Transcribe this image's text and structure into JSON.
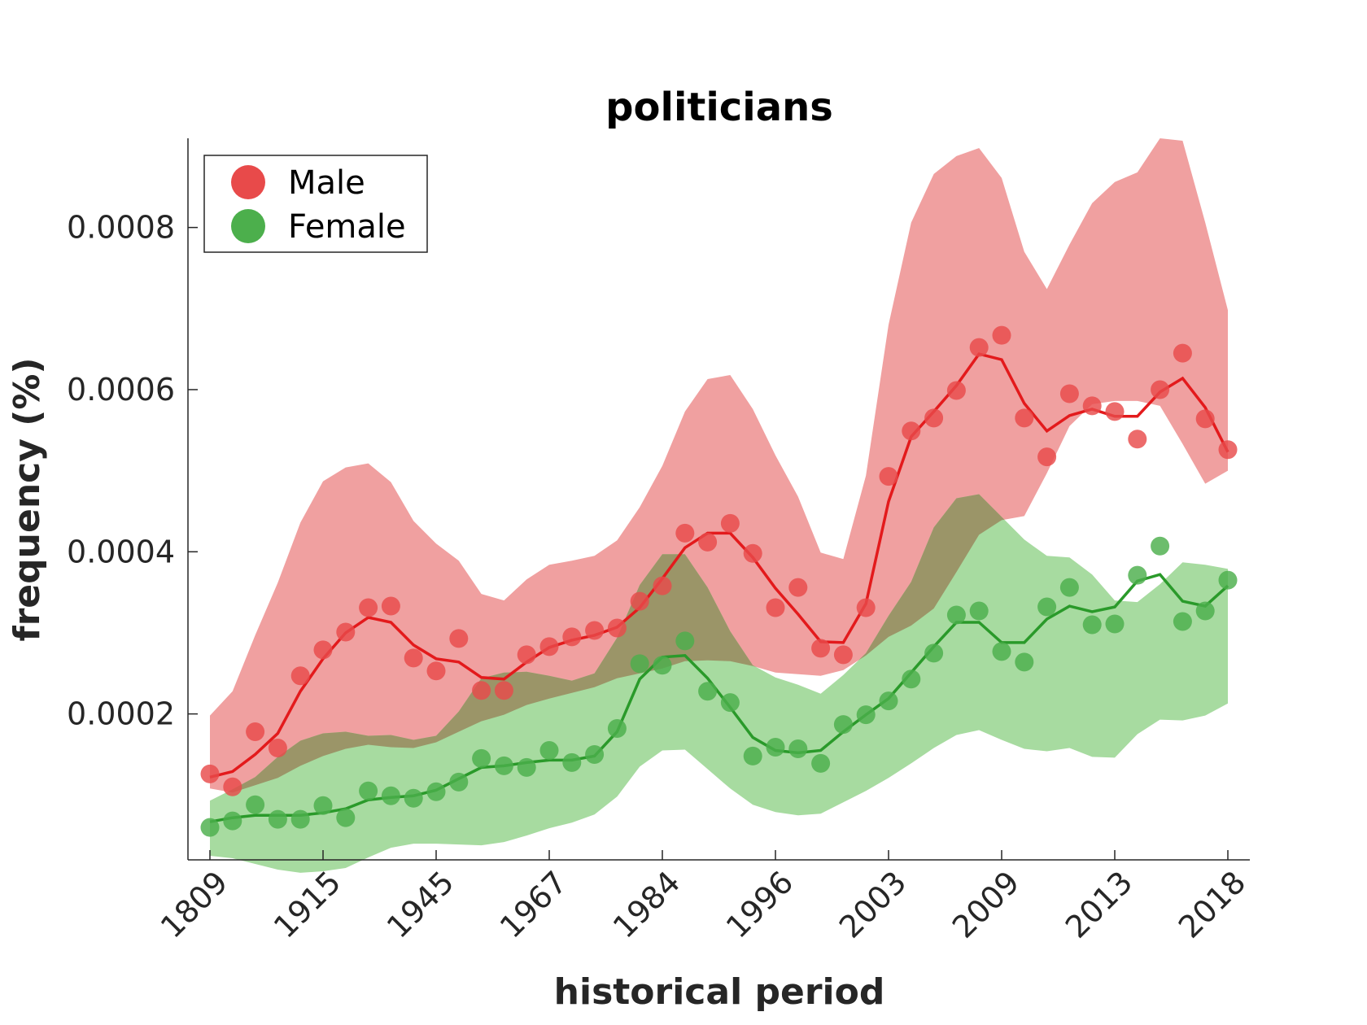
{
  "chart_data": {
    "type": "line",
    "title": "politicians",
    "xlabel": "historical period",
    "ylabel": "frequency (%)",
    "x_tick_labels": [
      "1809",
      "1915",
      "1945",
      "1967",
      "1984",
      "1996",
      "2003",
      "2009",
      "2013",
      "2018"
    ],
    "y_ticks": [
      0.0002,
      0.0004,
      0.0006,
      0.0008
    ],
    "y_tick_labels": [
      "0.0002",
      "0.0004",
      "0.0006",
      "0.0008"
    ],
    "ylim": [
      2e-05,
      0.00091
    ],
    "n_points": 46,
    "legend": {
      "position": "top-left",
      "entries": [
        "Male",
        "Female"
      ]
    },
    "grid": false,
    "colors": {
      "male_band": "#f0a0a0",
      "male_line": "#e31a1c",
      "male_point": "#e84a4a",
      "female_band": "#a7dba0",
      "female_line": "#2a9a2a",
      "female_point": "#4caf4c",
      "overlap_band": "#9b9568",
      "axis": "#262626"
    },
    "series": [
      {
        "name": "Male",
        "points": [
          0.000126,
          0.00011,
          0.000178,
          0.000158,
          0.000247,
          0.000279,
          0.000301,
          0.000331,
          0.000333,
          0.000269,
          0.000253,
          0.000293,
          0.000229,
          0.000229,
          0.000273,
          0.000283,
          0.000295,
          0.000303,
          0.000306,
          0.000339,
          0.000358,
          0.000423,
          0.000412,
          0.000435,
          0.000398,
          0.000331,
          0.000356,
          0.000281,
          0.000273,
          0.000331,
          0.000493,
          0.000549,
          0.000565,
          0.000599,
          0.000652,
          0.000667,
          0.000565,
          0.000517,
          0.000595,
          0.00058,
          0.000573,
          0.000539,
          0.0006,
          0.000645,
          0.000564,
          0.000526
        ],
        "smooth": [
          0.000122,
          0.000129,
          0.00015,
          0.000176,
          0.000228,
          0.000268,
          0.0003,
          0.000319,
          0.000313,
          0.000285,
          0.000268,
          0.000264,
          0.000245,
          0.000243,
          0.000264,
          0.000282,
          0.000291,
          0.000297,
          0.000307,
          0.000331,
          0.000367,
          0.000405,
          0.000423,
          0.000423,
          0.000393,
          0.000355,
          0.000323,
          0.000289,
          0.000288,
          0.000336,
          0.000462,
          0.000542,
          0.000573,
          0.000605,
          0.000644,
          0.000637,
          0.000583,
          0.000549,
          0.000568,
          0.000576,
          0.000567,
          0.000567,
          0.000597,
          0.000614,
          0.000578,
          0.000523
        ],
        "band_upper": [
          0.000198,
          0.000228,
          0.000297,
          0.000362,
          0.000436,
          0.000487,
          0.000504,
          0.000509,
          0.000486,
          0.000438,
          0.00041,
          0.000389,
          0.000348,
          0.00034,
          0.000366,
          0.000384,
          0.000389,
          0.000395,
          0.000414,
          0.000455,
          0.000506,
          0.000573,
          0.000613,
          0.000618,
          0.000576,
          0.000519,
          0.000468,
          0.000399,
          0.000391,
          0.000494,
          0.00068,
          0.000806,
          0.000866,
          0.000888,
          0.000898,
          0.000861,
          0.00077,
          0.000724,
          0.000779,
          0.00083,
          0.000856,
          0.000868,
          0.00091,
          0.000907,
          0.000806,
          0.000698
        ],
        "band_lower": [
          0.000108,
          0.000103,
          0.000112,
          0.000121,
          0.000136,
          0.000148,
          0.000157,
          0.000162,
          0.000159,
          0.000158,
          0.000165,
          0.000178,
          0.000191,
          0.000199,
          0.000211,
          0.000219,
          0.000226,
          0.000233,
          0.000244,
          0.00025,
          0.000256,
          0.000265,
          0.000266,
          0.000265,
          0.000259,
          0.000251,
          0.000249,
          0.000247,
          0.000254,
          0.000272,
          0.000295,
          0.000309,
          0.00033,
          0.000375,
          0.000421,
          0.000439,
          0.000444,
          0.000497,
          0.000555,
          0.000582,
          0.000586,
          0.000586,
          0.00058,
          0.000533,
          0.000484,
          0.0005
        ]
      },
      {
        "name": "Female",
        "points": [
          6e-05,
          6.8e-05,
          8.8e-05,
          7e-05,
          7e-05,
          8.7e-05,
          7.2e-05,
          0.000105,
          9.9e-05,
          9.6e-05,
          0.000104,
          0.000116,
          0.000145,
          0.000136,
          0.000134,
          0.000155,
          0.00014,
          0.00015,
          0.000182,
          0.000262,
          0.00026,
          0.00029,
          0.000228,
          0.000214,
          0.000148,
          0.000159,
          0.000157,
          0.000139,
          0.000187,
          0.000199,
          0.000216,
          0.000243,
          0.000275,
          0.000322,
          0.000327,
          0.000277,
          0.000264,
          0.000332,
          0.000356,
          0.00031,
          0.000311,
          0.000371,
          0.000407,
          0.000314,
          0.000327,
          0.000365
        ],
        "smooth": [
          6.7e-05,
          7.2e-05,
          7.5e-05,
          7.5e-05,
          7.5e-05,
          7.8e-05,
          8.3e-05,
          9.4e-05,
          9.7e-05,
          9.9e-05,
          0.000106,
          0.00012,
          0.000134,
          0.000136,
          0.00014,
          0.000143,
          0.000143,
          0.000148,
          0.000178,
          0.000243,
          0.00027,
          0.000272,
          0.000244,
          0.000208,
          0.000171,
          0.000155,
          0.000152,
          0.000155,
          0.000178,
          0.000199,
          0.000219,
          0.000251,
          0.000283,
          0.000313,
          0.000313,
          0.000288,
          0.000288,
          0.000317,
          0.000333,
          0.000326,
          0.000332,
          0.000364,
          0.000372,
          0.000339,
          0.000333,
          0.000358
        ],
        "band_upper": [
          9.3e-05,
          0.000107,
          0.000122,
          0.000147,
          0.000167,
          0.000176,
          0.000178,
          0.000173,
          0.000174,
          0.000168,
          0.000173,
          0.000203,
          0.000244,
          0.000251,
          0.000252,
          0.000247,
          0.000241,
          0.00025,
          0.000294,
          0.000359,
          0.000397,
          0.000397,
          0.000356,
          0.000302,
          0.00026,
          0.000245,
          0.000236,
          0.000225,
          0.000248,
          0.000275,
          0.000321,
          0.000363,
          0.00043,
          0.000466,
          0.000471,
          0.000443,
          0.000415,
          0.000395,
          0.000393,
          0.000372,
          0.00034,
          0.000338,
          0.00036,
          0.000387,
          0.000384,
          0.000379
        ],
        "band_lower": [
          2.5e-05,
          2.2e-05,
          1.5e-05,
          8e-06,
          4e-06,
          6e-06,
          1e-05,
          2.3e-05,
          3.5e-05,
          4e-05,
          4e-05,
          3.9e-05,
          3.8e-05,
          4.2e-05,
          5e-05,
          5.9e-05,
          6.6e-05,
          7.6e-05,
          9.8e-05,
          0.000135,
          0.000155,
          0.000156,
          0.000132,
          0.000108,
          8.8e-05,
          7.9e-05,
          7.5e-05,
          7.7e-05,
          9.1e-05,
          0.000105,
          0.000121,
          0.000139,
          0.000158,
          0.000174,
          0.00018,
          0.000168,
          0.000157,
          0.000154,
          0.000158,
          0.000147,
          0.000146,
          0.000175,
          0.000193,
          0.000192,
          0.000198,
          0.000213
        ]
      }
    ]
  }
}
